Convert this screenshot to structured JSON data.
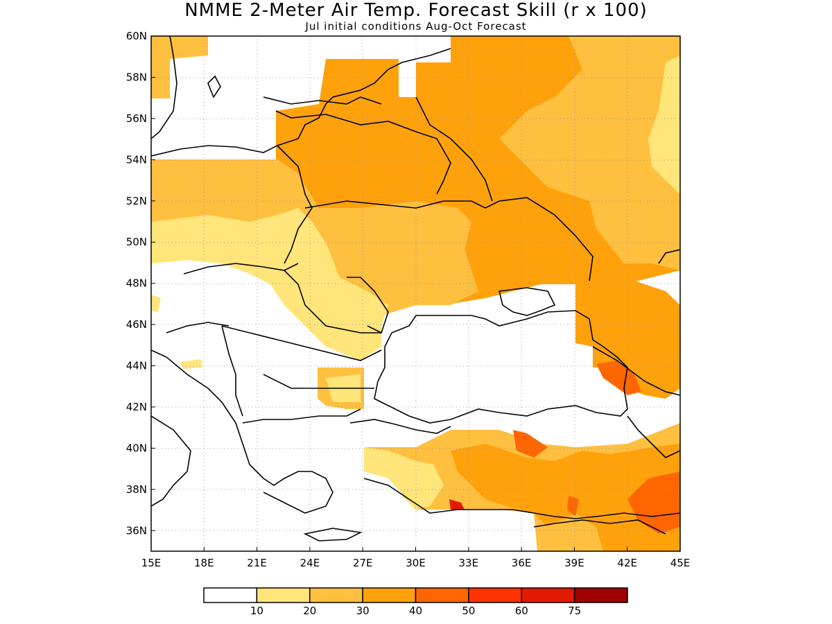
{
  "title": "NMME 2-Meter Air Temp. Forecast Skill (r x 100)",
  "subtitle": "Jul initial conditions  Aug-Oct Forecast",
  "map": {
    "lon_ticks": [
      "15E",
      "18E",
      "21E",
      "24E",
      "27E",
      "30E",
      "33E",
      "36E",
      "39E",
      "42E",
      "45E"
    ],
    "lat_ticks": [
      "60N",
      "58N",
      "56N",
      "54N",
      "52N",
      "50N",
      "48N",
      "46N",
      "44N",
      "42N",
      "40N",
      "38N",
      "36N"
    ],
    "lon_range": [
      15,
      45
    ],
    "lat_range": [
      35,
      60
    ]
  },
  "colorbar": {
    "colors": [
      "#ffffff",
      "#ffe57a",
      "#ffbf3f",
      "#ffa10b",
      "#ff6600",
      "#ff3300",
      "#e41a00",
      "#a00000"
    ],
    "labels": [
      "10",
      "20",
      "30",
      "40",
      "50",
      "60",
      "75"
    ]
  }
}
